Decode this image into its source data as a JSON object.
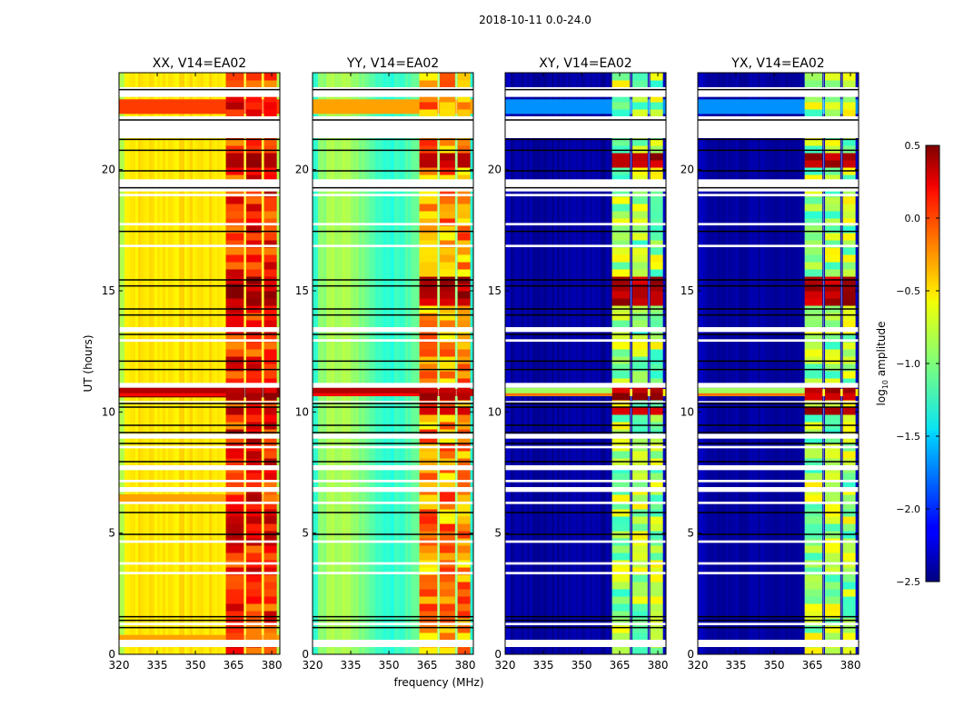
{
  "figure": {
    "suptitle": "2018-10-11 0.0-24.0"
  },
  "chart_data": {
    "type": "heatmap",
    "title": "2018-10-11 0.0-24.0",
    "xlabel": "frequency (MHz)",
    "ylabel": "UT (hours)",
    "xlim": [
      320,
      383.2
    ],
    "ylim": [
      0,
      24
    ],
    "xticks": [
      320,
      335,
      350,
      365,
      380
    ],
    "xtick_labels": [
      "320",
      "335",
      "350",
      "365",
      "380"
    ],
    "yticks": [
      0,
      5,
      10,
      15,
      20
    ],
    "ytick_labels": [
      "0",
      "5",
      "10",
      "15",
      "20"
    ],
    "colorbar": {
      "label": "log10 amplitude",
      "label_main": "log",
      "label_sub": "10",
      "label_rest": " amplitude",
      "range": [
        -2.5,
        0.5
      ],
      "ticks": [
        0.5,
        0.0,
        -0.5,
        -1.0,
        -1.5,
        -2.0,
        -2.5
      ],
      "tick_labels": [
        "0.5",
        "0.0",
        "−0.5",
        "−1.0",
        "−1.5",
        "−2.0",
        "−2.5"
      ],
      "colormap": "jet"
    },
    "rfi_channels_mhz": [
      [
        362,
        369
      ],
      [
        370,
        376
      ],
      [
        377,
        382
      ],
      [
        383,
        383.2
      ]
    ],
    "rfi_channel_centers_mhz": [
      365,
      371,
      378
    ],
    "flagged_gaps_hours": [
      [
        23.0,
        23.4
      ],
      [
        21.3,
        22.2
      ],
      [
        19.1,
        19.6
      ],
      [
        18.9,
        19.0
      ],
      [
        17.7,
        17.8
      ],
      [
        16.8,
        16.9
      ],
      [
        13.3,
        13.5
      ],
      [
        12.9,
        13.0
      ],
      [
        11.0,
        11.2
      ],
      [
        10.4,
        10.45
      ],
      [
        8.9,
        9.1
      ],
      [
        8.5,
        8.6
      ],
      [
        7.6,
        7.8
      ],
      [
        7.1,
        7.2
      ],
      [
        6.7,
        6.9
      ],
      [
        6.2,
        6.3
      ],
      [
        4.6,
        4.7
      ],
      [
        3.7,
        3.8
      ],
      [
        3.3,
        3.4
      ],
      [
        1.2,
        1.3
      ],
      [
        0.3,
        0.6
      ]
    ],
    "separator_lines_hours": [
      23.3,
      22.05,
      21.25,
      20.8,
      19.95,
      19.25,
      17.45,
      15.45,
      15.2,
      14.25,
      14.0,
      13.2,
      12.1,
      11.75,
      10.35,
      10.2,
      9.45,
      9.15,
      8.7,
      7.95,
      5.85,
      4.95,
      1.55,
      1.4,
      1.1
    ],
    "hot_band_hours": [
      10.65,
      11.0
    ],
    "strong_rfi_hours": [
      [
        20.0,
        20.6
      ],
      [
        14.2,
        15.5
      ],
      [
        10.5,
        11.1
      ],
      [
        9.9,
        10.2
      ]
    ],
    "panels": [
      {
        "title": "XX, V14=EA02",
        "correlation": "XX",
        "baseline_level": -0.55,
        "edge_level": -0.85,
        "rfi_level": 0.05,
        "strong_rfi_level": 0.5,
        "bright_rows_hours": [
          [
            22.3,
            22.9,
            -0.05
          ],
          [
            21.4,
            22.0,
            -0.15
          ],
          [
            0.6,
            0.8,
            -0.35
          ],
          [
            6.2,
            6.6,
            -0.35
          ],
          [
            10.6,
            11.1,
            0.5
          ]
        ]
      },
      {
        "title": "YY, V14=EA02",
        "correlation": "YY",
        "baseline_level": -1.05,
        "edge_level": -1.25,
        "rfi_level": -0.3,
        "strong_rfi_level": 0.5,
        "bright_rows_hours": [
          [
            22.3,
            22.9,
            -0.35
          ],
          [
            21.5,
            21.9,
            -0.5
          ],
          [
            10.65,
            10.95,
            0.3
          ]
        ]
      },
      {
        "title": "XY, V14=EA02",
        "correlation": "XY",
        "baseline_level": -2.4,
        "edge_level": -2.3,
        "rfi_level": -0.9,
        "strong_rfi_level": 0.5,
        "bright_rows_hours": [
          [
            22.3,
            22.9,
            -1.7
          ],
          [
            10.65,
            10.95,
            -0.6
          ]
        ]
      },
      {
        "title": "YX, V14=EA02",
        "correlation": "YX",
        "baseline_level": -2.4,
        "edge_level": -2.3,
        "rfi_level": -0.9,
        "strong_rfi_level": 0.5,
        "bright_rows_hours": [
          [
            22.3,
            22.9,
            -1.7
          ],
          [
            10.65,
            10.95,
            -0.6
          ]
        ]
      }
    ]
  }
}
